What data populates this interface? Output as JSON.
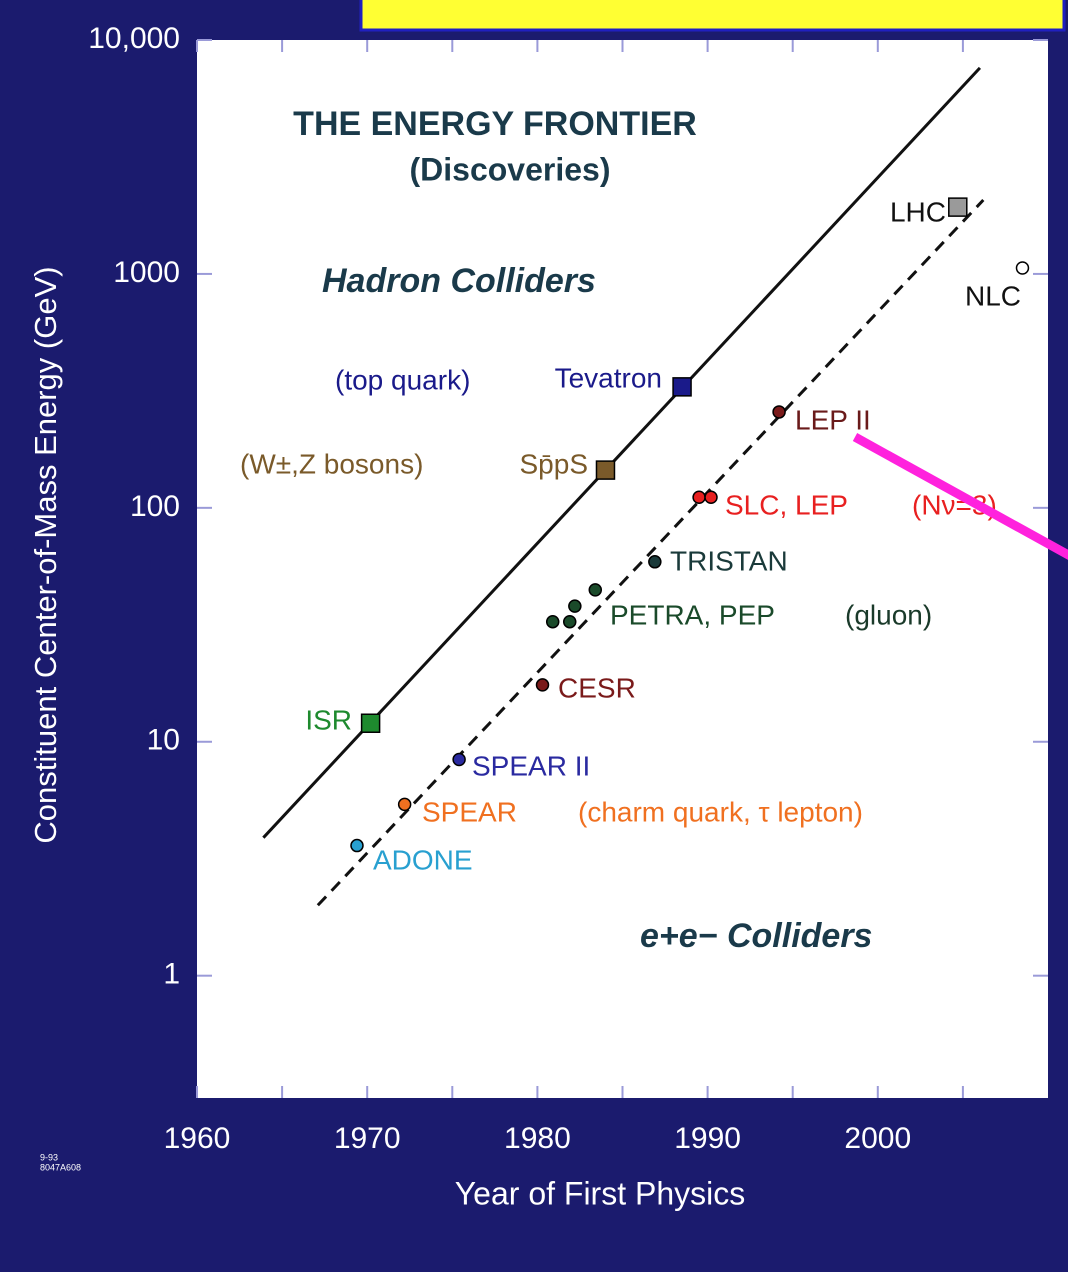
{
  "chart_data": {
    "type": "scatter",
    "title": "THE ENERGY FRONTIER",
    "subtitle": "(Discoveries)",
    "xlabel": "Year of First Physics",
    "ylabel": "Constituent Center-of-Mass Energy   (GeV)",
    "xlim": [
      1960,
      2010
    ],
    "ylim": [
      0.3,
      10000
    ],
    "log_y": true,
    "xticks": [
      1960,
      1970,
      1980,
      1990,
      2000
    ],
    "xticks_minor": [
      1965,
      1975,
      1985,
      1995,
      2005
    ],
    "yticks": [
      1,
      10,
      100,
      1000,
      {
        "value": 10000,
        "label": "10,000"
      }
    ],
    "edgecolor": "#000000",
    "series": [
      {
        "name": "Hadron Colliders",
        "marker": "square",
        "x": [
          1970.2,
          1984.0,
          1988.5,
          2004.7
        ],
        "values": [
          12,
          145,
          329,
          1930
        ],
        "colors": [
          "#1e8a2e",
          "#7a5a2a",
          "#1a1a8a",
          "#9a9a9a"
        ],
        "labels": [
          "ISR",
          "Sp̄pS",
          "Tevatron",
          "LHC"
        ]
      },
      {
        "name": "e+e−  Colliders",
        "marker": "circle",
        "x": [
          1969.4,
          1972.2,
          1975.4,
          1980.3,
          1980.9,
          1981.9,
          1982.2,
          1983.4,
          1986.9,
          1989.5,
          1990.2,
          1994.2,
          2008.5
        ],
        "values": [
          3.6,
          5.4,
          8.4,
          17.5,
          32.6,
          32.6,
          38,
          44.6,
          58.8,
          111,
          111,
          257,
          1060
        ],
        "colors": [
          "#28a0d0",
          "#f07020",
          "#2a2aa0",
          "#7a1a1a",
          "#1a4a2a",
          "#1a4a2a",
          "#1a4a2a",
          "#1a4a2a",
          "#1a3a3a",
          "#e82020",
          "#e82020",
          "#7a1a1a",
          "#ffffff"
        ],
        "labels": [
          "ADONE",
          "SPEAR",
          "SPEAR II",
          "CESR",
          "PETRA, PEP",
          null,
          null,
          null,
          "TRISTAN",
          "SLC, LEP",
          null,
          "LEP II",
          "NLC"
        ]
      }
    ],
    "lines": [
      {
        "style": "solid",
        "x": [
          1963.9,
          2006.0
        ],
        "values": [
          3.89,
          7600
        ]
      },
      {
        "style": "dashed",
        "x": [
          1967.1,
          2006.2
        ],
        "values": [
          2.0,
          2070
        ]
      }
    ],
    "annotations": [
      "(top quark)",
      "(W±,Z  bosons)",
      "(Nν=3)",
      "(gluon)",
      "(charm quark, τ lepton)"
    ],
    "footnote": [
      "9-93",
      "8047A608"
    ]
  }
}
